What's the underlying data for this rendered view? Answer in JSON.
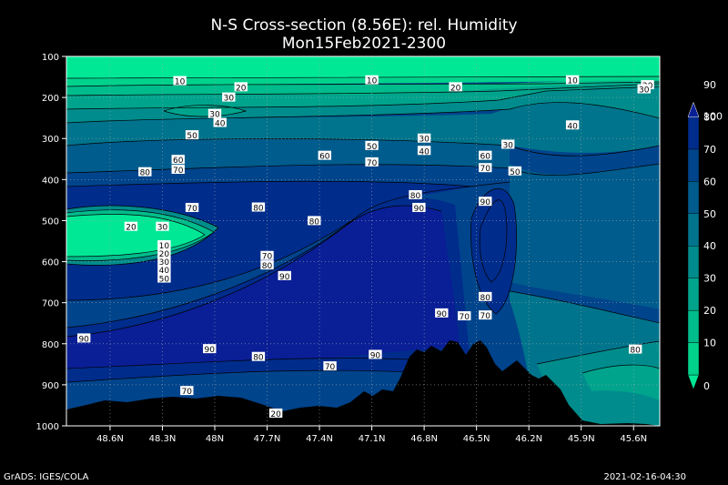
{
  "chart_data": {
    "type": "heatmap",
    "title": "N-S Cross-section (8.56E): rel. Humidity",
    "subtitle": "Mon15Feb2021-2300",
    "x_ticks": [
      "48.6N",
      "48.3N",
      "48N",
      "47.7N",
      "47.4N",
      "47.1N",
      "46.8N",
      "46.5N",
      "46.2N",
      "45.9N",
      "45.6N"
    ],
    "x_range": [
      48.85,
      45.45
    ],
    "y_ticks": [
      "100",
      "200",
      "300",
      "400",
      "500",
      "600",
      "700",
      "800",
      "900",
      "1000"
    ],
    "y_range": [
      100,
      1000
    ],
    "grid": true,
    "colorbar": {
      "levels": [
        "0",
        "10",
        "20",
        "30",
        "40",
        "50",
        "60",
        "70",
        "80",
        "90",
        "100"
      ],
      "colors": [
        "#00e896",
        "#00d28c",
        "#00bc8c",
        "#00a48c",
        "#008c8c",
        "#00748c",
        "#005c8c",
        "#00448c",
        "#002c8c",
        "#0a1e96"
      ]
    },
    "terrain_color": "#000000",
    "contour_labels": [
      {
        "t": "10",
        "lat": 48.2,
        "p": 160
      },
      {
        "t": "10",
        "lat": 47.1,
        "p": 158
      },
      {
        "t": "10",
        "lat": 45.95,
        "p": 158
      },
      {
        "t": "20",
        "lat": 47.85,
        "p": 175
      },
      {
        "t": "20",
        "lat": 46.62,
        "p": 175
      },
      {
        "t": "20",
        "lat": 45.52,
        "p": 170
      },
      {
        "t": "30",
        "lat": 47.92,
        "p": 200
      },
      {
        "t": "30",
        "lat": 48.0,
        "p": 240
      },
      {
        "t": "30",
        "lat": 46.8,
        "p": 300
      },
      {
        "t": "30",
        "lat": 46.32,
        "p": 315
      },
      {
        "t": "30",
        "lat": 48.3,
        "p": 515
      },
      {
        "t": "30",
        "lat": 45.54,
        "p": 180
      },
      {
        "t": "40",
        "lat": 47.97,
        "p": 262
      },
      {
        "t": "40",
        "lat": 46.8,
        "p": 330
      },
      {
        "t": "40",
        "lat": 45.95,
        "p": 268
      },
      {
        "t": "50",
        "lat": 48.13,
        "p": 292
      },
      {
        "t": "50",
        "lat": 47.1,
        "p": 318
      },
      {
        "t": "50",
        "lat": 46.28,
        "p": 380
      },
      {
        "t": "60",
        "lat": 48.21,
        "p": 352
      },
      {
        "t": "60",
        "lat": 47.37,
        "p": 342
      },
      {
        "t": "60",
        "lat": 46.45,
        "p": 342
      },
      {
        "t": "70",
        "lat": 48.21,
        "p": 376
      },
      {
        "t": "70",
        "lat": 47.1,
        "p": 358
      },
      {
        "t": "70",
        "lat": 46.45,
        "p": 372
      },
      {
        "t": "70",
        "lat": 48.13,
        "p": 469
      },
      {
        "t": "70",
        "lat": 47.7,
        "p": 586
      },
      {
        "t": "70",
        "lat": 46.57,
        "p": 733
      },
      {
        "t": "70",
        "lat": 46.45,
        "p": 731
      },
      {
        "t": "70",
        "lat": 47.34,
        "p": 855
      },
      {
        "t": "70",
        "lat": 48.16,
        "p": 915
      },
      {
        "t": "80",
        "lat": 48.4,
        "p": 382
      },
      {
        "t": "80",
        "lat": 47.75,
        "p": 468
      },
      {
        "t": "80",
        "lat": 47.43,
        "p": 501
      },
      {
        "t": "80",
        "lat": 46.85,
        "p": 438
      },
      {
        "t": "80",
        "lat": 47.7,
        "p": 609
      },
      {
        "t": "80",
        "lat": 46.45,
        "p": 686
      },
      {
        "t": "80",
        "lat": 47.75,
        "p": 832
      },
      {
        "t": "80",
        "lat": 45.59,
        "p": 814
      },
      {
        "t": "90",
        "lat": 46.83,
        "p": 469
      },
      {
        "t": "90",
        "lat": 46.45,
        "p": 454
      },
      {
        "t": "90",
        "lat": 47.6,
        "p": 635
      },
      {
        "t": "90",
        "lat": 46.7,
        "p": 726
      },
      {
        "t": "90",
        "lat": 48.75,
        "p": 787
      },
      {
        "t": "90",
        "lat": 48.03,
        "p": 813
      },
      {
        "t": "90",
        "lat": 47.08,
        "p": 827
      },
      {
        "t": "20",
        "lat": 48.48,
        "p": 515
      },
      {
        "t": "10",
        "lat": 48.29,
        "p": 560
      },
      {
        "t": "20",
        "lat": 48.29,
        "p": 580
      },
      {
        "t": "30",
        "lat": 48.29,
        "p": 600
      },
      {
        "t": "40",
        "lat": 48.29,
        "p": 620
      },
      {
        "t": "50",
        "lat": 48.29,
        "p": 641
      },
      {
        "t": "20",
        "lat": 47.65,
        "p": 970
      }
    ]
  },
  "footer": {
    "left": "GrADS: IGES/COLA",
    "right": "2021-02-16-04:30"
  }
}
